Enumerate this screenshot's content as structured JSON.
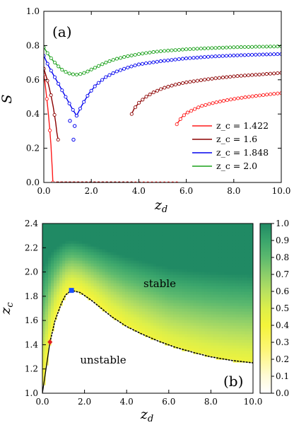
{
  "chart_data": [
    {
      "type": "line",
      "panel_label": "(a)",
      "xlabel": "z_d",
      "ylabel": "S",
      "xlim": [
        0,
        10
      ],
      "ylim": [
        0,
        1.0
      ],
      "xticks": [
        "0.0",
        "2.0",
        "4.0",
        "6.0",
        "8.0",
        "10.0"
      ],
      "yticks": [
        "0.0",
        "0.2",
        "0.4",
        "0.6",
        "0.8",
        "1.0"
      ],
      "legend_position": "lower-right",
      "series": [
        {
          "name": "z_c = 1.422",
          "color": "#ff1a1a",
          "segments": [
            {
              "x": [
                0.0,
                0.05,
                0.1,
                0.15,
                0.2,
                0.25,
                0.3,
                0.33,
                0.36,
                0.38
              ],
              "y": [
                0.63,
                0.58,
                0.52,
                0.46,
                0.39,
                0.31,
                0.22,
                0.14,
                0.07,
                0.0
              ]
            },
            {
              "x": [
                5.6,
                5.8,
                6.0,
                6.3,
                6.6,
                7.0,
                7.5,
                8.0,
                8.5,
                9.0,
                9.5,
                10.0
              ],
              "y": [
                0.34,
                0.38,
                0.405,
                0.425,
                0.445,
                0.46,
                0.475,
                0.488,
                0.498,
                0.507,
                0.515,
                0.522
              ]
            }
          ],
          "zero_line": [
            0.38,
            5.6
          ]
        },
        {
          "name": "z_c = 1.6",
          "color": "#8b0000",
          "segments": [
            {
              "x": [
                0.0,
                0.1,
                0.2,
                0.3,
                0.4,
                0.5,
                0.55,
                0.6
              ],
              "y": [
                0.665,
                0.62,
                0.57,
                0.51,
                0.44,
                0.35,
                0.29,
                0.25
              ]
            },
            {
              "x": [
                3.7,
                3.8,
                4.0,
                4.3,
                4.6,
                5.0,
                5.5,
                6.0,
                7.0,
                8.0,
                9.0,
                10.0
              ],
              "y": [
                0.4,
                0.43,
                0.465,
                0.5,
                0.525,
                0.55,
                0.57,
                0.585,
                0.605,
                0.62,
                0.63,
                0.64
              ]
            }
          ],
          "zero_line": [
            0.6,
            3.7
          ]
        },
        {
          "name": "z_c = 1.848",
          "color": "#0000ee",
          "segments": [
            {
              "x": [
                0.0,
                0.1,
                0.2,
                0.4,
                0.6,
                0.8,
                1.0,
                1.2,
                1.38
              ],
              "y": [
                0.74,
                0.71,
                0.68,
                0.63,
                0.58,
                0.53,
                0.48,
                0.43,
                0.39
              ]
            },
            {
              "x": [
                1.38,
                1.6,
                1.9,
                2.2,
                2.6,
                3.0,
                3.5,
                4.0,
                5.0,
                6.0,
                7.0,
                8.0,
                9.0,
                10.0
              ],
              "y": [
                0.39,
                0.45,
                0.52,
                0.57,
                0.615,
                0.645,
                0.67,
                0.69,
                0.71,
                0.725,
                0.735,
                0.742,
                0.747,
                0.75
              ]
            }
          ],
          "isolated_points": [
            [
              1.1,
              0.36
            ],
            [
              1.3,
              0.33
            ],
            [
              1.25,
              0.25
            ]
          ]
        },
        {
          "name": "z_c = 2.0",
          "color": "#1aa01a",
          "segments": [
            {
              "x": [
                0.0,
                0.2,
                0.4,
                0.6,
                0.8,
                1.0,
                1.2,
                1.4,
                1.6,
                1.8,
                2.0,
                2.3,
                2.6,
                3.0,
                3.5,
                4.0,
                4.5,
                5.0,
                6.0,
                7.0,
                8.0,
                9.0,
                10.0
              ],
              "y": [
                0.79,
                0.745,
                0.71,
                0.68,
                0.655,
                0.64,
                0.632,
                0.63,
                0.635,
                0.645,
                0.66,
                0.68,
                0.7,
                0.72,
                0.737,
                0.75,
                0.76,
                0.768,
                0.778,
                0.785,
                0.79,
                0.793,
                0.795
              ]
            }
          ]
        }
      ]
    },
    {
      "type": "heatmap",
      "panel_label": "(b)",
      "xlabel": "z_d",
      "ylabel": "z_c",
      "xlim": [
        0,
        10
      ],
      "ylim": [
        1.0,
        2.4
      ],
      "xticks": [
        "0.0",
        "2.0",
        "4.0",
        "6.0",
        "8.0",
        "10.0"
      ],
      "yticks": [
        "1.0",
        "1.2",
        "1.4",
        "1.6",
        "1.8",
        "2.0",
        "2.2",
        "2.4"
      ],
      "colorbar_ticks": [
        "0.0",
        "0.1",
        "0.2",
        "0.3",
        "0.4",
        "0.5",
        "0.6",
        "0.7",
        "0.8",
        "0.9",
        "1.0"
      ],
      "colorbar_range": [
        0.0,
        1.0
      ],
      "region_labels": {
        "stable": "stable",
        "unstable": "unstable"
      },
      "boundary": {
        "x": [
          1.38,
          1.8,
          2.3,
          2.8,
          3.3,
          4.0,
          4.7,
          5.5,
          6.3,
          7.2,
          8.0,
          9.0,
          10.0
        ],
        "y": [
          1.848,
          1.83,
          1.77,
          1.7,
          1.63,
          1.55,
          1.49,
          1.43,
          1.38,
          1.335,
          1.3,
          1.27,
          1.25
        ]
      },
      "boundary_left": {
        "x": [
          0.0,
          0.36
        ],
        "y": [
          1.0,
          1.422
        ]
      },
      "boundary_left_upper": {
        "x": [
          0.36,
          0.6,
          0.9,
          1.1,
          1.38
        ],
        "y": [
          1.422,
          1.6,
          1.74,
          1.81,
          1.848
        ]
      },
      "special_points": [
        {
          "x": 0.36,
          "y": 1.422,
          "color": "#e02020"
        },
        {
          "x": 1.38,
          "y": 1.848,
          "color": "#1a4fff"
        }
      ]
    }
  ]
}
